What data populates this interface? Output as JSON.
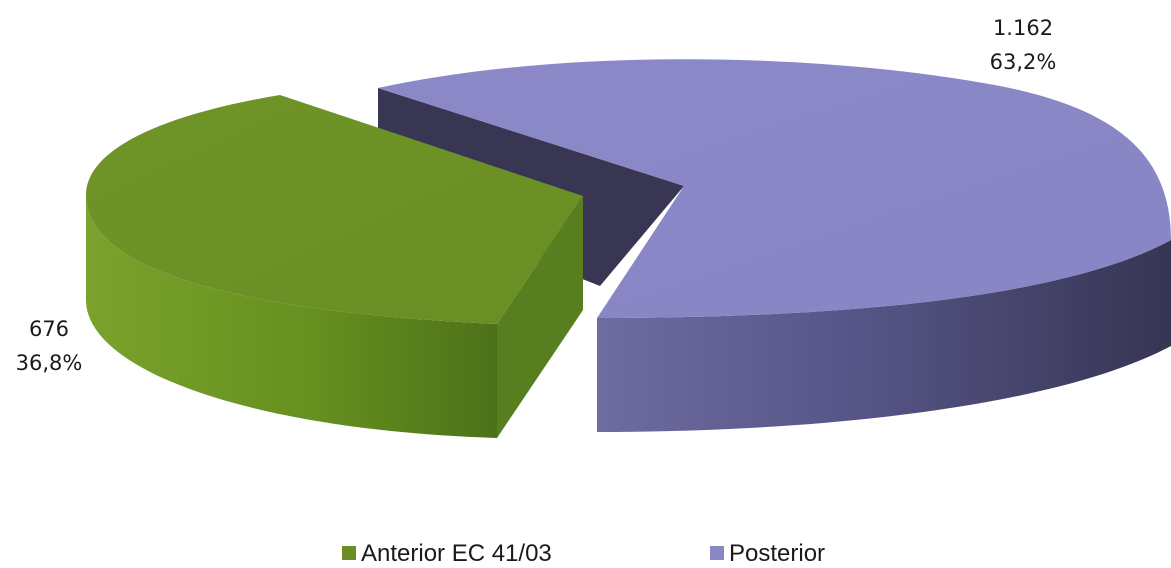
{
  "chart_data": {
    "type": "pie",
    "style": "3d-exploded",
    "series": [
      {
        "name": "Anterior EC 41/03",
        "value": 676,
        "value_label": "676",
        "percent": 36.8,
        "percent_label": "36,8%",
        "color": "#6b8e23",
        "side_color": "#557a1e"
      },
      {
        "name": "Posterior",
        "value": 1162,
        "value_label": "1.162",
        "percent": 63.2,
        "percent_label": "63,2%",
        "color": "#8a87c6",
        "side_color": "#3a3955"
      }
    ],
    "legend_position": "bottom"
  }
}
